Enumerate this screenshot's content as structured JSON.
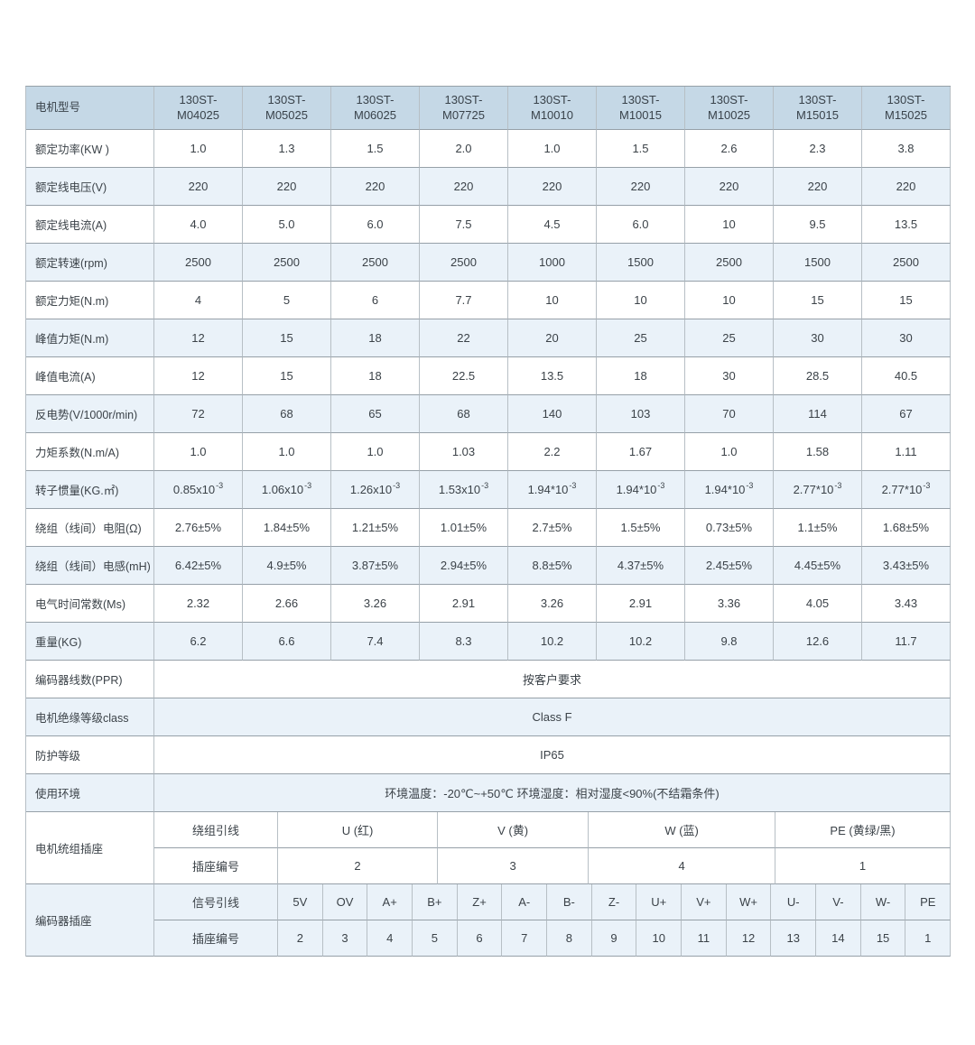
{
  "colors": {
    "header_bg": "#c5d8e6",
    "alt_row_bg": "#eaf2f9",
    "row_bg": "#ffffff",
    "text": "#3b4248",
    "border_horizontal": "#96a0a8",
    "border_vertical": "#b7bfc5"
  },
  "table": {
    "model_header": {
      "label": "电机型号",
      "models": [
        "130ST-\nM04025",
        "130ST-\nM05025",
        "130ST-\nM06025",
        "130ST-\nM07725",
        "130ST-\nM10010",
        "130ST-\nM10015",
        "130ST-\nM10025",
        "130ST-\nM15015",
        "130ST-\nM15025"
      ]
    },
    "spec_rows": [
      {
        "label": "额定功率(KW )",
        "values": [
          "1.0",
          "1.3",
          "1.5",
          "2.0",
          "1.0",
          "1.5",
          "2.6",
          "2.3",
          "3.8"
        ]
      },
      {
        "label": "额定线电压(V)",
        "values": [
          "220",
          "220",
          "220",
          "220",
          "220",
          "220",
          "220",
          "220",
          "220"
        ]
      },
      {
        "label": "额定线电流(A)",
        "values": [
          "4.0",
          "5.0",
          "6.0",
          "7.5",
          "4.5",
          "6.0",
          "10",
          "9.5",
          "13.5"
        ]
      },
      {
        "label": "额定转速(rpm)",
        "values": [
          "2500",
          "2500",
          "2500",
          "2500",
          "1000",
          "1500",
          "2500",
          "1500",
          "2500"
        ]
      },
      {
        "label": "额定力矩(N.m)",
        "values": [
          "4",
          "5",
          "6",
          "7.7",
          "10",
          "10",
          "10",
          "15",
          "15"
        ]
      },
      {
        "label": "峰值力矩(N.m)",
        "values": [
          "12",
          "15",
          "18",
          "22",
          "20",
          "25",
          "25",
          "30",
          "30"
        ]
      },
      {
        "label": "峰值电流(A)",
        "values": [
          "12",
          "15",
          "18",
          "22.5",
          "13.5",
          "18",
          "30",
          "28.5",
          "40.5"
        ]
      },
      {
        "label": "反电势(V/1000r/min)",
        "values": [
          "72",
          "68",
          "65",
          "68",
          "140",
          "103",
          "70",
          "114",
          "67"
        ]
      },
      {
        "label": "力矩系数(N.m/A)",
        "values": [
          "1.0",
          "1.0",
          "1.0",
          "1.03",
          "2.2",
          "1.67",
          "1.0",
          "1.58",
          "1.11"
        ]
      },
      {
        "label": "转子惯量(KG.㎡)",
        "values": [
          "0.85x10^-3",
          "1.06x10^-3",
          "1.26x10^-3",
          "1.53x10^-3",
          "1.94*10^-3",
          "1.94*10^-3",
          "1.94*10^-3",
          "2.77*10^-3",
          "2.77*10^-3"
        ]
      },
      {
        "label": "绕组（线间）电阻(Ω)",
        "values": [
          "2.76±5%",
          "1.84±5%",
          "1.21±5%",
          "1.01±5%",
          "2.7±5%",
          "1.5±5%",
          "0.73±5%",
          "1.1±5%",
          "1.68±5%"
        ]
      },
      {
        "label": "绕组（线间）电感(mH)",
        "values": [
          "6.42±5%",
          "4.9±5%",
          "3.87±5%",
          "2.94±5%",
          "8.8±5%",
          "4.37±5%",
          "2.45±5%",
          "4.45±5%",
          "3.43±5%"
        ]
      },
      {
        "label": "电气时间常数(Ms)",
        "values": [
          "2.32",
          "2.66",
          "3.26",
          "2.91",
          "3.26",
          "2.91",
          "3.36",
          "4.05",
          "3.43"
        ]
      },
      {
        "label": "重量(KG)",
        "values": [
          "6.2",
          "6.6",
          "7.4",
          "8.3",
          "10.2",
          "10.2",
          "9.8",
          "12.6",
          "11.7"
        ]
      }
    ],
    "span_rows": [
      {
        "label": "编码器线数(PPR)",
        "value": "按客户要求"
      },
      {
        "label": "电机绝缘等级class",
        "value": "Class F"
      },
      {
        "label": "防护等级",
        "value": "IP65"
      },
      {
        "label": "使用环境",
        "value": "环境温度：-20℃~+50℃ 环境湿度：相对湿度<90%(不结霜条件)"
      }
    ],
    "motor_socket": {
      "label": "电机统组插座",
      "rows": [
        {
          "label": "绕组引线",
          "cells": [
            "U (红)",
            "V (黄)",
            "W (蓝)",
            "PE (黄绿/黑)"
          ]
        },
        {
          "label": "插座编号",
          "cells": [
            "2",
            "3",
            "4",
            "1"
          ]
        }
      ]
    },
    "encoder_socket": {
      "label": "编码器插座",
      "rows": [
        {
          "label": "信号引线",
          "cells": [
            "5V",
            "OV",
            "A+",
            "B+",
            "Z+",
            "A-",
            "B-",
            "Z-",
            "U+",
            "V+",
            "W+",
            "U-",
            "V-",
            "W-",
            "PE"
          ]
        },
        {
          "label": "插座编号",
          "cells": [
            "2",
            "3",
            "4",
            "5",
            "6",
            "7",
            "8",
            "9",
            "10",
            "11",
            "12",
            "13",
            "14",
            "15",
            "1"
          ]
        }
      ]
    }
  }
}
